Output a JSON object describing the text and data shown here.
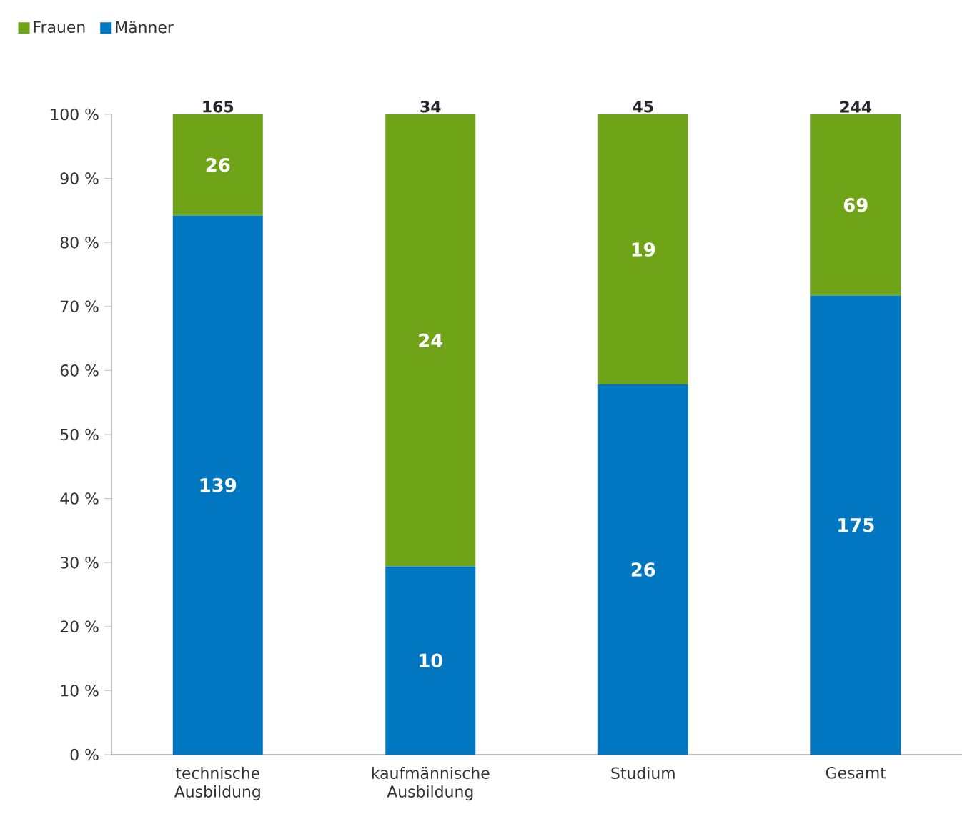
{
  "chart_data": {
    "type": "bar",
    "stacked": true,
    "categories": [
      "technische Ausbildung",
      "kaufmännische Ausbildung",
      "Studium",
      "Gesamt"
    ],
    "series": [
      {
        "name": "Männer",
        "color": "#0077c0",
        "values": [
          84.2,
          29.4,
          57.8,
          71.7
        ]
      },
      {
        "name": "Frauen",
        "color": "#6fa318",
        "values": [
          15.8,
          70.6,
          42.2,
          28.3
        ]
      }
    ],
    "annotations": [
      "139",
      "10",
      "26",
      "175",
      "26",
      "24",
      "19",
      "69",
      "165",
      "34",
      "45",
      "244"
    ],
    "ylim": [
      0,
      100
    ],
    "yticks": [
      {
        "value": 0,
        "label": "0 %"
      },
      {
        "value": 10,
        "label": "10 %"
      },
      {
        "value": 20,
        "label": "20 %"
      },
      {
        "value": 30,
        "label": "30 %"
      },
      {
        "value": 40,
        "label": "40 %"
      },
      {
        "value": 50,
        "label": "50 %"
      },
      {
        "value": 60,
        "label": "60 %"
      },
      {
        "value": 70,
        "label": "70 %"
      },
      {
        "value": 80,
        "label": "80 %"
      },
      {
        "value": 90,
        "label": "90 %"
      },
      {
        "value": 100,
        "label": "100 %"
      }
    ],
    "legend": "top left"
  }
}
